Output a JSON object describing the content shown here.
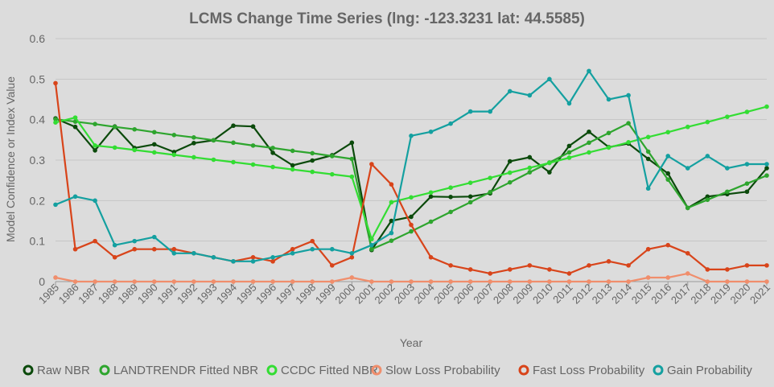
{
  "chart_data": {
    "type": "line",
    "title": "LCMS Change Time Series (lng: -123.3231 lat: 44.5585)",
    "xlabel": "Year",
    "ylabel": "Model Confidence or Index Value",
    "ylim": [
      0,
      0.6
    ],
    "yticks": [
      "0",
      "0.1",
      "0.2",
      "0.3",
      "0.4",
      "0.5",
      "0.6"
    ],
    "x": [
      "1985",
      "1986",
      "1987",
      "1988",
      "1989",
      "1990",
      "1991",
      "1992",
      "1993",
      "1994",
      "1995",
      "1996",
      "1997",
      "1998",
      "1999",
      "2000",
      "2001",
      "2002",
      "2003",
      "2004",
      "2005",
      "2006",
      "2007",
      "2008",
      "2009",
      "2010",
      "2011",
      "2012",
      "2013",
      "2014",
      "2015",
      "2016",
      "2017",
      "2018",
      "2019",
      "2020",
      "2021"
    ],
    "grid": true,
    "legend_position": "bottom",
    "series": [
      {
        "name": "Raw NBR",
        "color": "#0b4a0b",
        "values": [
          0.403,
          0.382,
          0.324,
          0.383,
          0.33,
          0.339,
          0.32,
          0.342,
          0.349,
          0.385,
          0.383,
          0.318,
          0.287,
          0.299,
          0.312,
          0.343,
          0.078,
          0.15,
          0.16,
          0.21,
          0.209,
          0.21,
          0.218,
          0.297,
          0.307,
          0.27,
          0.335,
          0.37,
          0.332,
          0.341,
          0.303,
          0.267,
          0.182,
          0.21,
          0.216,
          0.222,
          0.28
        ]
      },
      {
        "name": "LANDTRENDR Fitted NBR",
        "color": "#2ea52e",
        "values": [
          0.401,
          0.395,
          0.389,
          0.382,
          0.376,
          0.369,
          0.362,
          0.356,
          0.349,
          0.343,
          0.336,
          0.33,
          0.323,
          0.317,
          0.31,
          0.303,
          0.08,
          0.101,
          0.124,
          0.148,
          0.172,
          0.196,
          0.221,
          0.245,
          0.27,
          0.294,
          0.319,
          0.343,
          0.367,
          0.391,
          0.321,
          0.252,
          0.182,
          0.202,
          0.222,
          0.242,
          0.262
        ]
      },
      {
        "name": "CCDC Fitted NBR",
        "color": "#33dd33",
        "values": [
          0.393,
          0.405,
          0.336,
          0.331,
          0.325,
          0.319,
          0.313,
          0.307,
          0.301,
          0.295,
          0.289,
          0.283,
          0.277,
          0.271,
          0.265,
          0.259,
          0.105,
          0.196,
          0.208,
          0.22,
          0.232,
          0.244,
          0.256,
          0.269,
          0.281,
          0.293,
          0.306,
          0.319,
          0.331,
          0.344,
          0.357,
          0.369,
          0.382,
          0.394,
          0.407,
          0.419,
          0.432
        ]
      },
      {
        "name": "Slow Loss Probability",
        "color": "#f08e6c",
        "values": [
          0.01,
          0,
          0,
          0,
          0,
          0,
          0,
          0,
          0,
          0,
          0,
          0,
          0,
          0,
          0,
          0.01,
          0,
          0,
          0,
          0,
          0,
          0,
          0,
          0,
          0,
          0,
          0,
          0,
          0,
          0,
          0.01,
          0.01,
          0.02,
          0,
          0,
          0,
          0
        ]
      },
      {
        "name": "Fast Loss Probability",
        "color": "#d8441a",
        "values": [
          0.49,
          0.08,
          0.1,
          0.06,
          0.08,
          0.08,
          0.08,
          0.07,
          0.06,
          0.05,
          0.06,
          0.05,
          0.08,
          0.1,
          0.04,
          0.06,
          0.29,
          0.24,
          0.14,
          0.06,
          0.04,
          0.03,
          0.02,
          0.03,
          0.04,
          0.03,
          0.02,
          0.04,
          0.05,
          0.04,
          0.08,
          0.09,
          0.07,
          0.03,
          0.03,
          0.04,
          0.04
        ]
      },
      {
        "name": "Gain Probability",
        "color": "#14a0a0",
        "values": [
          0.19,
          0.21,
          0.2,
          0.09,
          0.1,
          0.11,
          0.07,
          0.07,
          0.06,
          0.05,
          0.05,
          0.06,
          0.07,
          0.08,
          0.08,
          0.07,
          0.09,
          0.12,
          0.36,
          0.37,
          0.39,
          0.42,
          0.42,
          0.47,
          0.46,
          0.5,
          0.44,
          0.52,
          0.45,
          0.46,
          0.23,
          0.31,
          0.28,
          0.31,
          0.28,
          0.29,
          0.29
        ]
      }
    ]
  }
}
